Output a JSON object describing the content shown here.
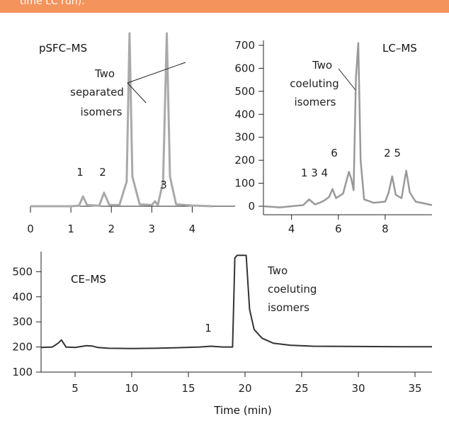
{
  "banner": {
    "text": "time LC run).",
    "color": "#f5935c"
  },
  "chart_data": [
    {
      "id": "psfc",
      "type": "line",
      "title": "pSFC–MS",
      "xlim": [
        0,
        4.5
      ],
      "ylim": [
        0,
        700
      ],
      "x_ticks": [
        0,
        1,
        2,
        3,
        4
      ],
      "y_ticks": [],
      "line_color": "#a9a9a9",
      "series": [
        {
          "x": [
            0,
            0.5,
            1.0,
            1.2,
            1.3,
            1.4,
            1.7,
            1.82,
            1.95,
            2.2,
            2.38,
            2.45,
            2.52,
            2.7,
            3.0,
            3.08,
            3.15,
            3.28,
            3.37,
            3.45,
            3.6,
            4.0,
            4.5
          ],
          "y": [
            0,
            0,
            0,
            2,
            40,
            5,
            2,
            55,
            5,
            5,
            100,
            700,
            120,
            8,
            5,
            20,
            5,
            100,
            700,
            120,
            8,
            3,
            0
          ]
        }
      ],
      "annotations": [
        {
          "text": "Two",
          "lines": [
            "Two",
            "separated",
            "isomers"
          ]
        },
        {
          "text": "1"
        },
        {
          "text": "2"
        },
        {
          "text": "3"
        }
      ]
    },
    {
      "id": "lc",
      "type": "line",
      "title": "LC–MS",
      "xlim": [
        2.8,
        10
      ],
      "ylim": [
        0,
        700
      ],
      "x_ticks": [
        4,
        6,
        8
      ],
      "y_ticks": [
        0,
        100,
        200,
        300,
        400,
        500,
        600,
        700
      ],
      "line_color": "#999999",
      "series": [
        {
          "x": [
            2.8,
            3.5,
            4.0,
            4.5,
            4.75,
            5.0,
            5.2,
            5.4,
            5.6,
            5.75,
            5.9,
            6.2,
            6.45,
            6.55,
            6.65,
            6.75,
            6.85,
            6.95,
            7.1,
            7.5,
            8.0,
            8.15,
            8.3,
            8.45,
            8.7,
            8.9,
            9.05,
            9.3,
            10.0
          ],
          "y": [
            0,
            -5,
            0,
            5,
            30,
            8,
            15,
            25,
            40,
            75,
            35,
            55,
            150,
            120,
            70,
            560,
            710,
            200,
            30,
            15,
            20,
            60,
            130,
            50,
            35,
            155,
            60,
            20,
            5
          ]
        }
      ],
      "annotations": [
        {
          "lines": [
            "Two",
            "coeluting",
            "isomers"
          ]
        },
        {
          "text": "6"
        },
        {
          "text": "1 3 4"
        },
        {
          "text": "2 5"
        }
      ]
    },
    {
      "id": "ce",
      "type": "line",
      "title": "CE–MS",
      "xlim": [
        2,
        36.5
      ],
      "ylim": [
        100,
        580
      ],
      "x_ticks": [
        5,
        10,
        15,
        20,
        25,
        30,
        35
      ],
      "y_ticks": [
        100,
        200,
        300,
        400,
        500
      ],
      "xlabel": "Time (min)",
      "line_color": "#333333",
      "series": [
        {
          "x": [
            2,
            3,
            3.5,
            3.8,
            4.2,
            5,
            6,
            6.5,
            7,
            8,
            10,
            12,
            14,
            16,
            17,
            18,
            18.9,
            19.1,
            19.3,
            20.1,
            20.4,
            20.8,
            21.5,
            22.5,
            24,
            26,
            30,
            34,
            36.5
          ],
          "y": [
            198,
            200,
            215,
            228,
            200,
            198,
            205,
            204,
            198,
            195,
            194,
            195,
            197,
            200,
            203,
            200,
            200,
            555,
            565,
            565,
            350,
            270,
            235,
            215,
            207,
            203,
            202,
            201,
            201
          ]
        }
      ],
      "annotations": [
        {
          "lines": [
            "Two",
            "coeluting",
            "isomers"
          ]
        },
        {
          "text": "1"
        }
      ]
    }
  ]
}
